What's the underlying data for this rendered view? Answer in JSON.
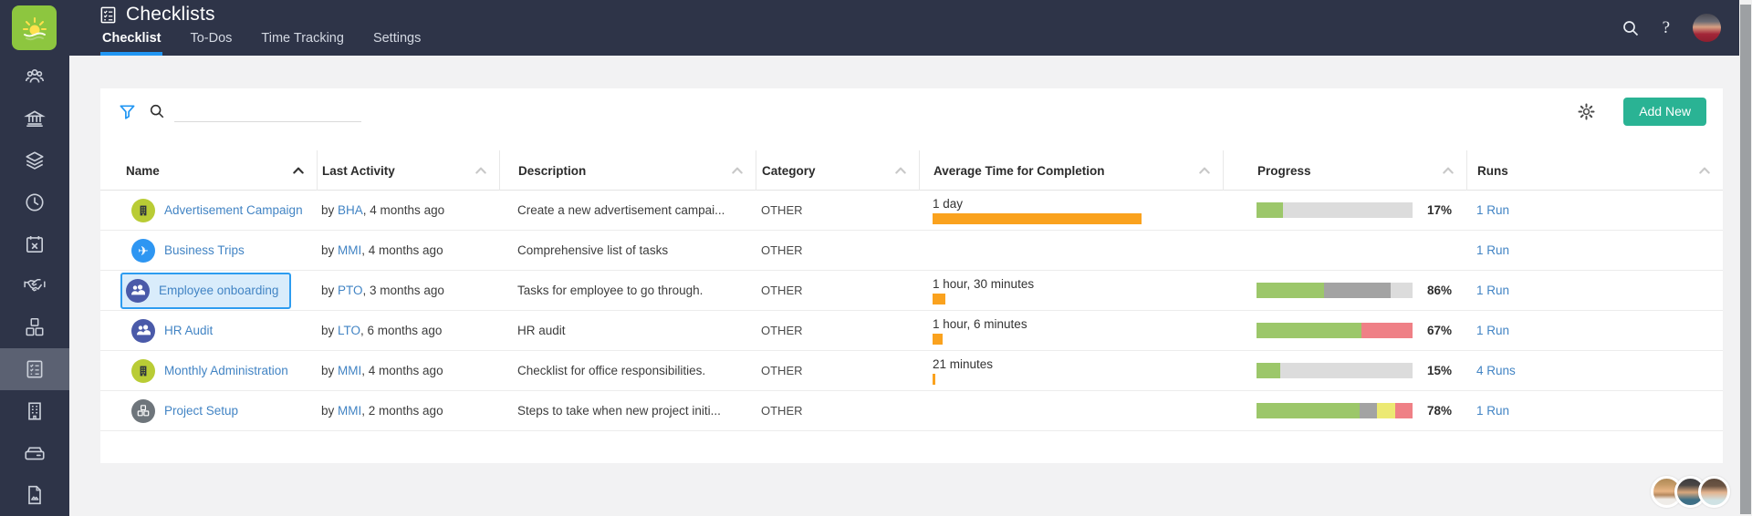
{
  "header": {
    "app_title": "Checklists",
    "tabs": [
      {
        "label": "Checklist",
        "active": true
      },
      {
        "label": "To-Dos",
        "active": false
      },
      {
        "label": "Time Tracking",
        "active": false
      },
      {
        "label": "Settings",
        "active": false
      }
    ],
    "icons": [
      "app-logo-sun-icon",
      "checklist-title-icon",
      "search-icon",
      "help-icon",
      "user-avatar"
    ]
  },
  "sidebar": {
    "items": [
      {
        "icon": "users-icon",
        "active": false
      },
      {
        "icon": "bank-icon",
        "active": false
      },
      {
        "icon": "layers-icon",
        "active": false
      },
      {
        "icon": "clock-icon",
        "active": false
      },
      {
        "icon": "calendar-x-icon",
        "active": false
      },
      {
        "icon": "handshake-icon",
        "active": false
      },
      {
        "icon": "cubes-icon",
        "active": false
      },
      {
        "icon": "checklist-icon",
        "active": true
      },
      {
        "icon": "building-icon",
        "active": false
      },
      {
        "icon": "drive-icon",
        "active": false
      },
      {
        "icon": "document-image-icon",
        "active": false
      }
    ]
  },
  "toolbar": {
    "filter_icon": "filter-funnel-icon",
    "search_icon": "search-icon",
    "search_value": "",
    "search_placeholder": "",
    "settings_icon": "gear-icon",
    "add_new_label": "Add New"
  },
  "table": {
    "columns": [
      {
        "label": "Name",
        "sorted": "asc"
      },
      {
        "label": "Last Activity",
        "sorted": null
      },
      {
        "label": "Description",
        "sorted": null
      },
      {
        "label": "Category",
        "sorted": null
      },
      {
        "label": "Average Time for Completion",
        "sorted": null
      },
      {
        "label": "Progress",
        "sorted": null
      },
      {
        "label": "Runs",
        "sorted": null
      }
    ],
    "rows": [
      {
        "name": "Advertisement Campaign",
        "icon": "building-icon",
        "icon_bg": "#b9cc35",
        "activity_by": "by ",
        "activity_user": "BHA",
        "activity_rest": ", 4 months ago",
        "description": "Create a new advertisement campai...",
        "category": "OTHER",
        "avg_time": "1 day",
        "avg_time_bar_pct": 100,
        "progress_pct": "17%",
        "progress_segments": [
          {
            "color": "#9cc76a",
            "pct": 17
          },
          {
            "color": "#dcdcdc",
            "pct": 83
          }
        ],
        "runs": "1 Run",
        "selected": false
      },
      {
        "name": "Business Trips",
        "icon": "airplane-icon",
        "icon_bg": "#2e96f2",
        "activity_by": "by ",
        "activity_user": "MMI",
        "activity_rest": ", 4 months ago",
        "description": "Comprehensive list of tasks",
        "category": "OTHER",
        "avg_time": null,
        "avg_time_bar_pct": 0,
        "progress_pct": null,
        "progress_segments": null,
        "runs": "1 Run",
        "selected": false
      },
      {
        "name": "Employee onboarding",
        "icon": "people-icon",
        "icon_bg": "#4a5aa9",
        "activity_by": "by ",
        "activity_user": "PTO",
        "activity_rest": ", 3 months ago",
        "description": "Tasks for employee to go through.",
        "category": "OTHER",
        "avg_time": "1 hour, 30 minutes",
        "avg_time_bar_pct": 6,
        "progress_pct": "86%",
        "progress_segments": [
          {
            "color": "#9cc76a",
            "pct": 43
          },
          {
            "color": "#a3a3a3",
            "pct": 43
          },
          {
            "color": "#dcdcdc",
            "pct": 14
          }
        ],
        "runs": "1 Run",
        "selected": true
      },
      {
        "name": "HR Audit",
        "icon": "people-icon",
        "icon_bg": "#4a5aa9",
        "activity_by": "by ",
        "activity_user": "LTO",
        "activity_rest": ", 6 months ago",
        "description": "HR audit",
        "category": "OTHER",
        "avg_time": "1 hour, 6 minutes",
        "avg_time_bar_pct": 5,
        "progress_pct": "67%",
        "progress_segments": [
          {
            "color": "#9cc76a",
            "pct": 67
          },
          {
            "color": "#ef8086",
            "pct": 33
          }
        ],
        "runs": "1 Run",
        "selected": false
      },
      {
        "name": "Monthly Administration",
        "icon": "building-icon",
        "icon_bg": "#b9cc35",
        "activity_by": "by ",
        "activity_user": "MMI",
        "activity_rest": ", 4 months ago",
        "description": "Checklist for office responsibilities.",
        "category": "OTHER",
        "avg_time": "21 minutes",
        "avg_time_bar_pct": 1.5,
        "progress_pct": "15%",
        "progress_segments": [
          {
            "color": "#9cc76a",
            "pct": 15
          },
          {
            "color": "#dcdcdc",
            "pct": 85
          }
        ],
        "runs": "4 Runs",
        "selected": false
      },
      {
        "name": "Project Setup",
        "icon": "cubes-icon",
        "icon_bg": "#6e757b",
        "activity_by": "by ",
        "activity_user": "MMI",
        "activity_rest": ", 2 months ago",
        "description": "Steps to take when new project initi...",
        "category": "OTHER",
        "avg_time": null,
        "avg_time_bar_pct": 0,
        "progress_pct": "78%",
        "progress_segments": [
          {
            "color": "#9cc76a",
            "pct": 66
          },
          {
            "color": "#a3a3a3",
            "pct": 11
          },
          {
            "color": "#ece973",
            "pct": 12
          },
          {
            "color": "#ef8086",
            "pct": 11
          }
        ],
        "runs": "1 Run",
        "selected": false
      }
    ]
  },
  "footer": {
    "avatars": [
      "male-bearded-avatar",
      "male-dark-hair-avatar",
      "female-avatar"
    ]
  },
  "colors": {
    "header_bg": "#2e3448",
    "sidebar_active_bg": "#5b6172",
    "tab_underline": "#2196f3",
    "link_blue": "#4284c4",
    "accent_teal": "#2ab394",
    "time_bar_orange": "#faa21e",
    "progress_green": "#9cc76a",
    "progress_gray": "#a3a3a3",
    "progress_lightgray": "#dcdcdc",
    "progress_red": "#ef8086",
    "progress_yellow": "#ece973"
  }
}
